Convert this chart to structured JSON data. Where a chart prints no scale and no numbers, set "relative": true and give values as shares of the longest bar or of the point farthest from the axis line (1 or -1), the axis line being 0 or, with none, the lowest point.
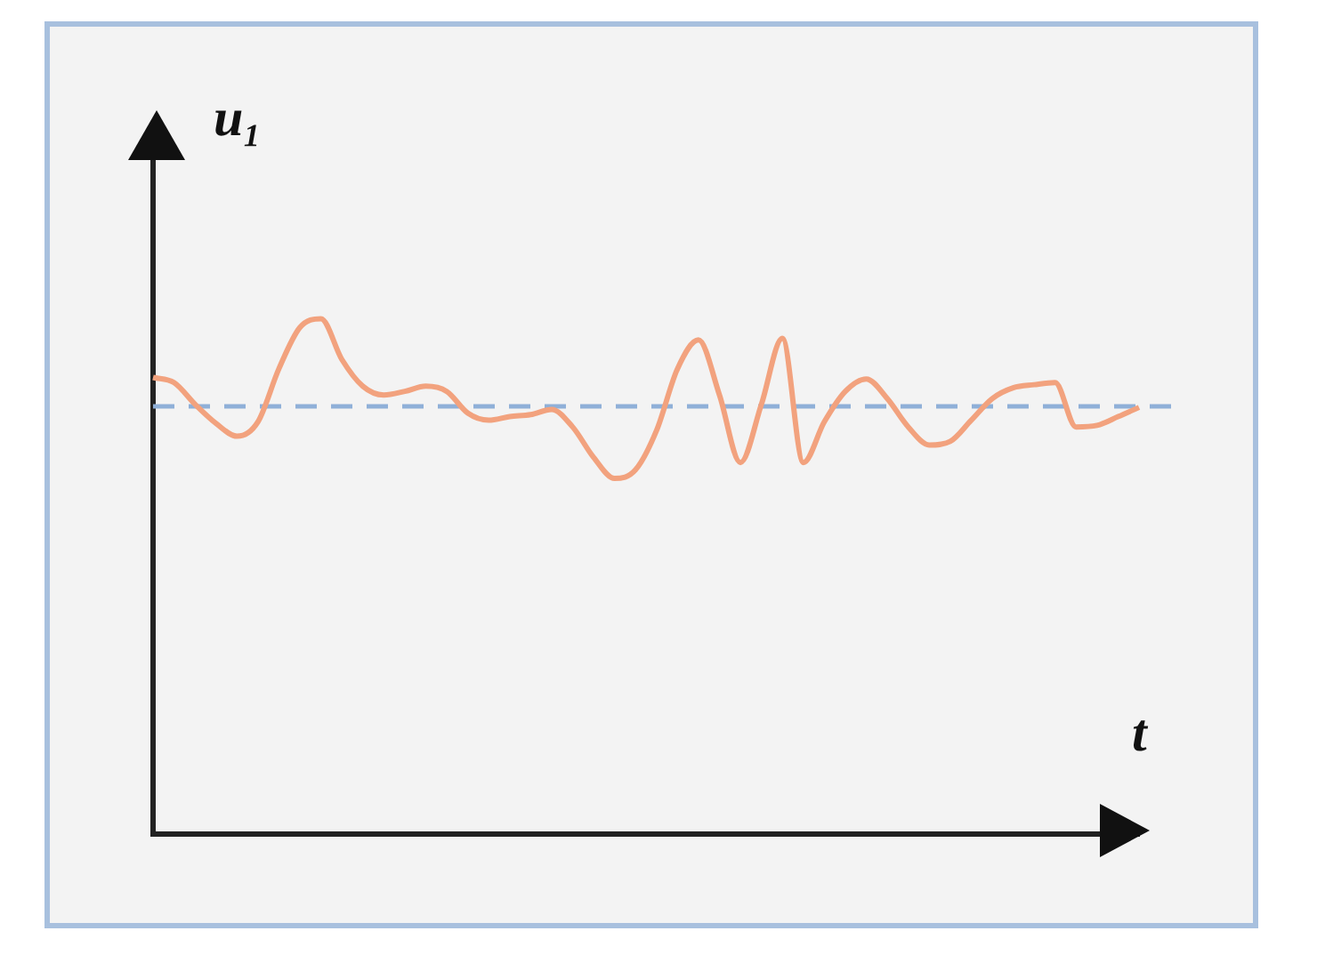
{
  "chart_data": {
    "type": "line",
    "relative": true,
    "xlabel": "t",
    "ylabel": "u₁",
    "legend": false,
    "grid": false,
    "marker": "none",
    "line_style": "solid",
    "categories": [
      null,
      null,
      null,
      null,
      null,
      null,
      null,
      null,
      null,
      null,
      null,
      null,
      null,
      null,
      null,
      null,
      null,
      null,
      null,
      null,
      null,
      null,
      null,
      null,
      null,
      null,
      null,
      null,
      null,
      null,
      null,
      null,
      null,
      null,
      null,
      null,
      null,
      null,
      null,
      null,
      null,
      null,
      null,
      null,
      null,
      null,
      null,
      null
    ],
    "series": [
      {
        "color": "#f2a27e",
        "values": [
          0.886,
          0.876,
          0.834,
          0.797,
          0.772,
          0.8,
          0.903,
          0.983,
          1.0,
          0.921,
          0.869,
          0.852,
          0.859,
          0.869,
          0.859,
          0.817,
          0.803,
          0.81,
          0.814,
          0.824,
          0.79,
          0.731,
          0.69,
          0.707,
          0.783,
          0.903,
          0.959,
          0.852,
          0.721,
          0.834,
          0.962,
          0.721,
          0.8,
          0.859,
          0.883,
          0.845,
          0.79,
          0.755,
          0.762,
          0.803,
          0.845,
          0.866,
          0.872,
          0.876,
          0.79,
          0.793,
          0.81,
          0.828
        ]
      }
    ],
    "ref_lines": [
      {
        "axis": "y",
        "value": 0.83,
        "color": "#8fb0d8",
        "line_style": "dashed"
      }
    ]
  }
}
